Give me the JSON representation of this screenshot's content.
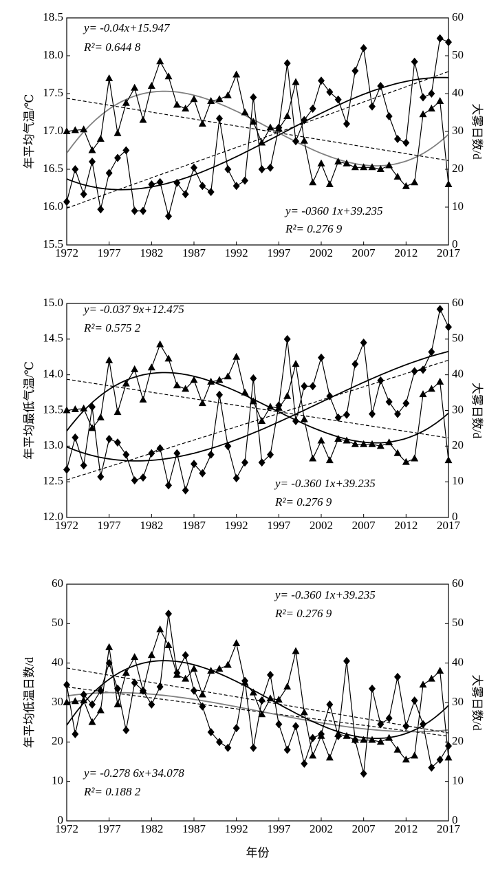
{
  "chart_data": [
    {
      "type": "line",
      "xlim": [
        1972,
        2017
      ],
      "xticks": [
        1972,
        1977,
        1982,
        1987,
        1992,
        1997,
        2002,
        2007,
        2012,
        2017
      ],
      "x": [
        1972,
        1973,
        1974,
        1975,
        1976,
        1977,
        1978,
        1979,
        1980,
        1981,
        1982,
        1983,
        1984,
        1985,
        1986,
        1987,
        1988,
        1989,
        1990,
        1991,
        1992,
        1993,
        1994,
        1995,
        1996,
        1997,
        1998,
        1999,
        2000,
        2001,
        2002,
        2003,
        2004,
        2005,
        2006,
        2007,
        2008,
        2009,
        2010,
        2011,
        2012,
        2013,
        2014,
        2015,
        2016,
        2017
      ],
      "ylim": [
        15.5,
        18.5
      ],
      "yticks": [
        15.5,
        {
          "value": 16,
          "label": "16.0"
        },
        16.5,
        {
          "value": 17,
          "label": "17.0"
        },
        17.5,
        {
          "value": 18,
          "label": "18.0"
        },
        18.5
      ],
      "y2lim": [
        0,
        60
      ],
      "y2ticks": [
        0,
        10,
        20,
        30,
        40,
        50,
        60
      ],
      "y_label": "年平均气温/℃",
      "y2_label": "大雾日数/d",
      "annotations": [
        "y= -0.04x+15.947",
        "R²= 0.644 8",
        "y= -0360 1x+39.235",
        "R²= 0.276 9"
      ],
      "series": [
        {
          "marker": "diamond",
          "color": "#000000",
          "fit_color": "#000000",
          "values": [
            16.07,
            16.5,
            16.17,
            16.6,
            15.97,
            16.45,
            16.65,
            16.75,
            15.95,
            15.95,
            16.3,
            16.33,
            15.88,
            16.32,
            16.17,
            16.52,
            16.28,
            16.2,
            17.17,
            16.5,
            16.28,
            16.35,
            17.45,
            16.5,
            16.52,
            17.05,
            17.9,
            16.87,
            17.15,
            17.3,
            17.67,
            17.52,
            17.42,
            17.1,
            17.8,
            18.1,
            17.33,
            17.6,
            17.2,
            16.9,
            16.85,
            17.92,
            17.45,
            17.5,
            18.23,
            18.18
          ]
        },
        {
          "marker": "triangle",
          "axis": "y2",
          "color": "#000000",
          "fit_color": "#808080",
          "values": [
            30,
            30.3,
            30.5,
            25,
            28,
            44,
            29.5,
            37.5,
            41.5,
            33,
            42,
            48.5,
            44.5,
            37,
            36,
            38.5,
            32,
            38,
            38.5,
            39.5,
            45,
            35,
            32.5,
            27,
            31,
            30.7,
            34,
            43,
            27.5,
            16.5,
            21.5,
            16,
            22,
            21.5,
            20.5,
            20.5,
            20.5,
            20,
            21,
            18,
            15.5,
            16.5,
            34.5,
            36,
            38,
            16
          ]
        }
      ]
    },
    {
      "type": "line",
      "xlim": [
        1972,
        2017
      ],
      "xticks": [
        1972,
        1977,
        1982,
        1987,
        1992,
        1997,
        2002,
        2007,
        2012,
        2017
      ],
      "x": [
        1972,
        1973,
        1974,
        1975,
        1976,
        1977,
        1978,
        1979,
        1980,
        1981,
        1982,
        1983,
        1984,
        1985,
        1986,
        1987,
        1988,
        1989,
        1990,
        1991,
        1992,
        1993,
        1994,
        1995,
        1996,
        1997,
        1998,
        1999,
        2000,
        2001,
        2002,
        2003,
        2004,
        2005,
        2006,
        2007,
        2008,
        2009,
        2010,
        2011,
        2012,
        2013,
        2014,
        2015,
        2016,
        2017
      ],
      "ylim": [
        12,
        15
      ],
      "yticks": [
        {
          "value": 12,
          "label": "12.0"
        },
        12.5,
        {
          "value": 13,
          "label": "13.0"
        },
        13.5,
        {
          "value": 14,
          "label": "14.0"
        },
        14.5,
        {
          "value": 15,
          "label": "15.0"
        }
      ],
      "y2lim": [
        0,
        60
      ],
      "y2ticks": [
        0,
        10,
        20,
        30,
        40,
        50,
        60
      ],
      "y_label": "年平均最低气温/℃",
      "y2_label": "大雾日数/d",
      "annotations": [
        "y= -0.037 9x+12.475",
        "R²= 0.575 2",
        "y= -0.360 1x+39.235",
        "R²= 0.276 9"
      ],
      "series": [
        {
          "marker": "diamond",
          "color": "#000000",
          "fit_color": "#000000",
          "values": [
            12.67,
            13.12,
            12.73,
            13.55,
            12.57,
            13.1,
            13.05,
            12.88,
            12.52,
            12.56,
            12.9,
            12.97,
            12.45,
            12.9,
            12.38,
            12.75,
            12.62,
            12.88,
            13.72,
            13,
            12.55,
            12.77,
            13.95,
            12.77,
            12.88,
            13.57,
            14.5,
            13.35,
            13.84,
            13.84,
            14.24,
            13.7,
            13.4,
            13.44,
            14.15,
            14.45,
            13.45,
            13.92,
            13.62,
            13.45,
            13.6,
            14.05,
            14.07,
            14.32,
            14.92,
            14.67
          ]
        },
        {
          "marker": "triangle",
          "axis": "y2",
          "color": "#000000",
          "fit_color": "#000000",
          "values": [
            30,
            30.3,
            30.5,
            25,
            28,
            44,
            29.5,
            37.5,
            41.5,
            33,
            42,
            48.5,
            44.5,
            37,
            36,
            38.5,
            32,
            38,
            38.5,
            39.5,
            45,
            35,
            32.5,
            27,
            31,
            30.7,
            34,
            43,
            27.5,
            16.5,
            21.5,
            16,
            22,
            21.5,
            20.5,
            20.5,
            20.5,
            20,
            21,
            18,
            15.5,
            16.5,
            34.5,
            36,
            38,
            16
          ]
        }
      ]
    },
    {
      "type": "line",
      "xlim": [
        1972,
        2017
      ],
      "xticks": [
        1972,
        1977,
        1982,
        1987,
        1992,
        1997,
        2002,
        2007,
        2012,
        2017
      ],
      "x": [
        1972,
        1973,
        1974,
        1975,
        1976,
        1977,
        1978,
        1979,
        1980,
        1981,
        1982,
        1983,
        1984,
        1985,
        1986,
        1987,
        1988,
        1989,
        1990,
        1991,
        1992,
        1993,
        1994,
        1995,
        1996,
        1997,
        1998,
        1999,
        2000,
        2001,
        2002,
        2003,
        2004,
        2005,
        2006,
        2007,
        2008,
        2009,
        2010,
        2011,
        2012,
        2013,
        2014,
        2015,
        2016,
        2017
      ],
      "ylim": [
        0,
        60
      ],
      "yticks": [
        0,
        10,
        20,
        30,
        40,
        50,
        60
      ],
      "y2lim": [
        0,
        60
      ],
      "y2ticks": [
        0,
        10,
        20,
        30,
        40,
        50,
        60
      ],
      "y_label": "年平均低温日数/d",
      "y2_label": "大雾日数/d",
      "x_label": "年份",
      "annotations": [
        "y= -0.360 1x+39.235",
        "R²= 0.276 9",
        "y= -0.278 6x+34.078",
        "R²= 0.188 2"
      ],
      "series": [
        {
          "marker": "diamond",
          "color": "#000000",
          "fit_color": "#808080",
          "values": [
            34.5,
            22,
            32,
            29.5,
            33,
            40,
            33.5,
            23,
            35,
            33,
            29.5,
            34,
            52.5,
            37.5,
            42,
            33,
            29,
            22.5,
            20,
            18.5,
            23.5,
            35.5,
            18.5,
            30.5,
            37,
            24.5,
            18,
            24,
            14.5,
            21,
            22,
            29.5,
            21.5,
            40.5,
            20.5,
            12,
            33.5,
            24.5,
            26,
            36.5,
            24,
            30.5,
            24.5,
            13.5,
            15.5,
            19
          ]
        },
        {
          "marker": "triangle",
          "axis": "y2",
          "color": "#000000",
          "fit_color": "#000000",
          "values": [
            30,
            30.3,
            30.5,
            25,
            28,
            44,
            29.5,
            37.5,
            41.5,
            33,
            42,
            48.5,
            44.5,
            37,
            36,
            38.5,
            32,
            38,
            38.5,
            39.5,
            45,
            35,
            32.5,
            27,
            31,
            30.7,
            34,
            43,
            27.5,
            16.5,
            21.5,
            16,
            22,
            21.5,
            20.5,
            20.5,
            20.5,
            20,
            21,
            18,
            15.5,
            16.5,
            34.5,
            36,
            38,
            16
          ]
        }
      ]
    }
  ]
}
